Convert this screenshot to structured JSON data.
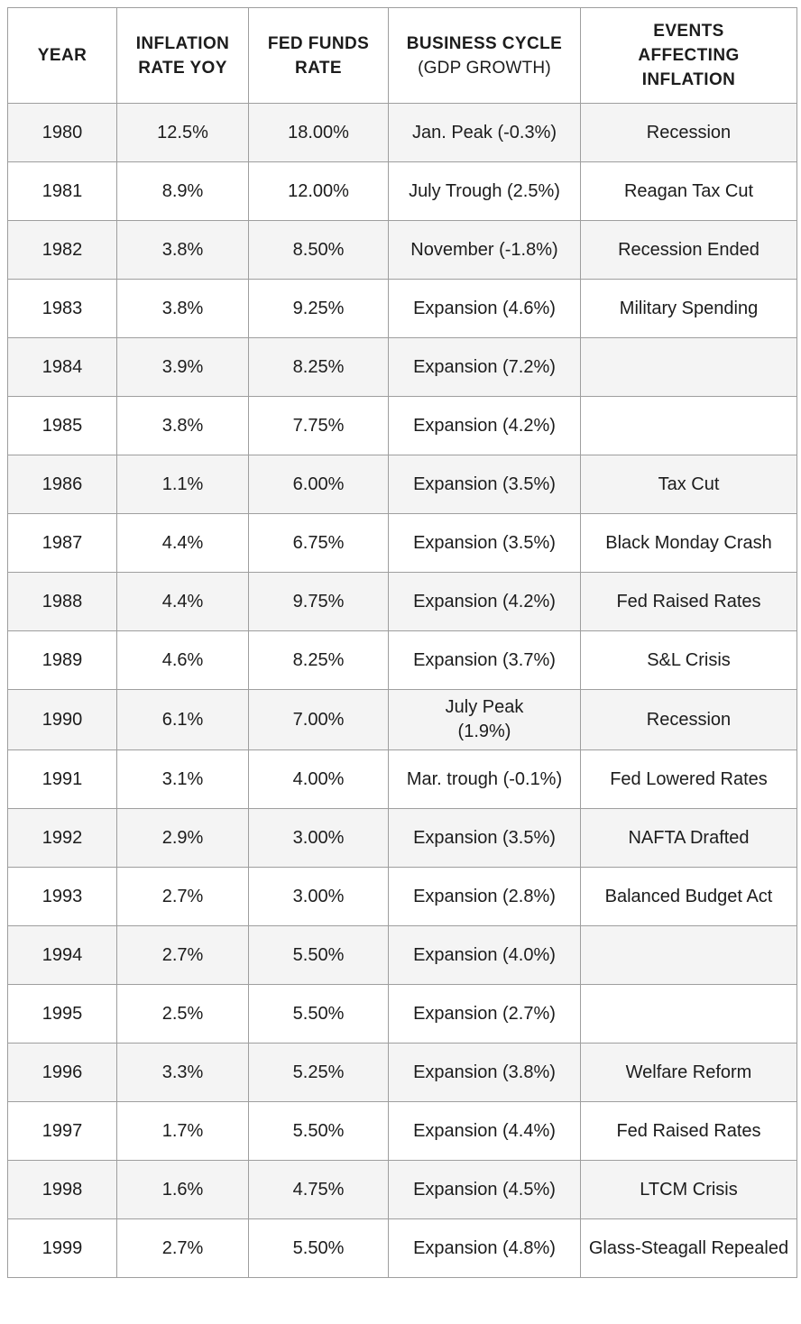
{
  "colors": {
    "border": "#9e9e9e",
    "row_stripe": "#f4f4f4",
    "row_plain": "#ffffff",
    "header_bg": "#ffffff",
    "text": "#1c1c1c"
  },
  "table": {
    "columns": [
      {
        "id": "year",
        "label": "YEAR",
        "sub": ""
      },
      {
        "id": "inflation",
        "label": "INFLATION\nRATE YOY",
        "sub": ""
      },
      {
        "id": "fed_funds",
        "label": "FED FUNDS\nRATE",
        "sub": ""
      },
      {
        "id": "cycle",
        "label": "BUSINESS CYCLE",
        "sub": "(GDP GROWTH)"
      },
      {
        "id": "events",
        "label": "EVENTS\nAFFECTING\nINFLATION",
        "sub": ""
      }
    ],
    "rows": [
      {
        "year": "1980",
        "inflation": "12.5%",
        "fed_funds": "18.00%",
        "cycle": "Jan. Peak (-0.3%)",
        "events": "Recession"
      },
      {
        "year": "1981",
        "inflation": "8.9%",
        "fed_funds": "12.00%",
        "cycle": "July Trough (2.5%)",
        "events": "Reagan Tax Cut"
      },
      {
        "year": "1982",
        "inflation": "3.8%",
        "fed_funds": "8.50%",
        "cycle": "November (-1.8%)",
        "events": "Recession Ended"
      },
      {
        "year": "1983",
        "inflation": "3.8%",
        "fed_funds": "9.25%",
        "cycle": "Expansion (4.6%)",
        "events": "Military Spending"
      },
      {
        "year": "1984",
        "inflation": "3.9%",
        "fed_funds": "8.25%",
        "cycle": "Expansion (7.2%)",
        "events": ""
      },
      {
        "year": "1985",
        "inflation": "3.8%",
        "fed_funds": "7.75%",
        "cycle": "Expansion (4.2%)",
        "events": ""
      },
      {
        "year": "1986",
        "inflation": "1.1%",
        "fed_funds": "6.00%",
        "cycle": "Expansion (3.5%)",
        "events": "Tax Cut"
      },
      {
        "year": "1987",
        "inflation": "4.4%",
        "fed_funds": "6.75%",
        "cycle": "Expansion (3.5%)",
        "events": "Black Monday Crash"
      },
      {
        "year": "1988",
        "inflation": "4.4%",
        "fed_funds": "9.75%",
        "cycle": "Expansion (4.2%)",
        "events": "Fed Raised Rates"
      },
      {
        "year": "1989",
        "inflation": "4.6%",
        "fed_funds": "8.25%",
        "cycle": "Expansion (3.7%)",
        "events": "S&L Crisis"
      },
      {
        "year": "1990",
        "inflation": "6.1%",
        "fed_funds": "7.00%",
        "cycle": "July Peak\n(1.9%)",
        "events": "Recession"
      },
      {
        "year": "1991",
        "inflation": "3.1%",
        "fed_funds": "4.00%",
        "cycle": "Mar. trough (-0.1%)",
        "events": "Fed Lowered Rates"
      },
      {
        "year": "1992",
        "inflation": "2.9%",
        "fed_funds": "3.00%",
        "cycle": "Expansion (3.5%)",
        "events": "NAFTA Drafted"
      },
      {
        "year": "1993",
        "inflation": "2.7%",
        "fed_funds": "3.00%",
        "cycle": "Expansion (2.8%)",
        "events": "Balanced Budget Act"
      },
      {
        "year": "1994",
        "inflation": "2.7%",
        "fed_funds": "5.50%",
        "cycle": "Expansion (4.0%)",
        "events": ""
      },
      {
        "year": "1995",
        "inflation": "2.5%",
        "fed_funds": "5.50%",
        "cycle": "Expansion (2.7%)",
        "events": ""
      },
      {
        "year": "1996",
        "inflation": "3.3%",
        "fed_funds": "5.25%",
        "cycle": "Expansion (3.8%)",
        "events": "Welfare Reform"
      },
      {
        "year": "1997",
        "inflation": "1.7%",
        "fed_funds": "5.50%",
        "cycle": "Expansion (4.4%)",
        "events": "Fed Raised Rates"
      },
      {
        "year": "1998",
        "inflation": "1.6%",
        "fed_funds": "4.75%",
        "cycle": "Expansion (4.5%)",
        "events": "LTCM Crisis"
      },
      {
        "year": "1999",
        "inflation": "2.7%",
        "fed_funds": "5.50%",
        "cycle": "Expansion (4.8%)",
        "events": "Glass-Steagall Repealed"
      }
    ]
  },
  "chart_data": {
    "type": "table",
    "title": "",
    "columns": [
      "YEAR",
      "INFLATION RATE YOY",
      "FED FUNDS RATE",
      "BUSINESS CYCLE (GDP GROWTH)",
      "EVENTS AFFECTING INFLATION"
    ],
    "categories": [
      1980,
      1981,
      1982,
      1983,
      1984,
      1985,
      1986,
      1987,
      1988,
      1989,
      1990,
      1991,
      1992,
      1993,
      1994,
      1995,
      1996,
      1997,
      1998,
      1999
    ],
    "series": [
      {
        "name": "Inflation Rate YoY (%)",
        "values": [
          12.5,
          8.9,
          3.8,
          3.8,
          3.9,
          3.8,
          1.1,
          4.4,
          4.4,
          4.6,
          6.1,
          3.1,
          2.9,
          2.7,
          2.7,
          2.5,
          3.3,
          1.7,
          1.6,
          2.7
        ]
      },
      {
        "name": "Fed Funds Rate (%)",
        "values": [
          18.0,
          12.0,
          8.5,
          9.25,
          8.25,
          7.75,
          6.0,
          6.75,
          9.75,
          8.25,
          7.0,
          4.0,
          3.0,
          3.0,
          5.5,
          5.5,
          5.25,
          5.5,
          4.75,
          5.5
        ]
      },
      {
        "name": "GDP Growth (%)",
        "values": [
          -0.3,
          2.5,
          -1.8,
          4.6,
          7.2,
          4.2,
          3.5,
          3.5,
          4.2,
          3.7,
          1.9,
          -0.1,
          3.5,
          2.8,
          4.0,
          2.7,
          3.8,
          4.4,
          4.5,
          4.8
        ]
      }
    ],
    "cycle_labels": [
      "Jan. Peak",
      "July Trough",
      "November",
      "Expansion",
      "Expansion",
      "Expansion",
      "Expansion",
      "Expansion",
      "Expansion",
      "Expansion",
      "July Peak",
      "Mar. trough",
      "Expansion",
      "Expansion",
      "Expansion",
      "Expansion",
      "Expansion",
      "Expansion",
      "Expansion",
      "Expansion"
    ],
    "events": [
      "Recession",
      "Reagan Tax Cut",
      "Recession Ended",
      "Military Spending",
      "",
      "",
      "Tax Cut",
      "Black Monday Crash",
      "Fed Raised Rates",
      "S&L Crisis",
      "Recession",
      "Fed Lowered Rates",
      "NAFTA Drafted",
      "Balanced Budget Act",
      "",
      "",
      "Welfare Reform",
      "Fed Raised Rates",
      "LTCM Crisis",
      "Glass-Steagall Repealed"
    ],
    "legend_position": "none",
    "grid": true
  }
}
